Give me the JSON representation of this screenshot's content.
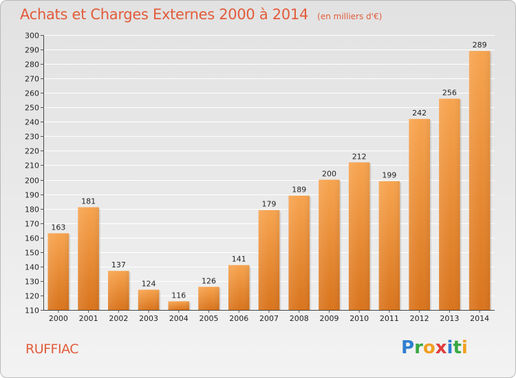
{
  "header": {
    "title": "Achats et Charges Externes 2000 à 2014",
    "subtitle": "(en milliers d'€)"
  },
  "footer": {
    "city": "RUFFIAC",
    "logo_text": "Proxiti",
    "logo_letters": [
      {
        "ch": "P",
        "color": "#2f7fd0"
      },
      {
        "ch": "r",
        "color": "#39a843"
      },
      {
        "ch": "o",
        "color": "#f0a020"
      },
      {
        "ch": "x",
        "color": "#e23b3b"
      },
      {
        "ch": "i",
        "color": "#2f7fd0"
      },
      {
        "ch": "t",
        "color": "#39a843"
      },
      {
        "ch": "i",
        "color": "#f0a020"
      }
    ]
  },
  "colors": {
    "accent": "#e25b3a",
    "bar_light": "#f7a44f",
    "bar_dark": "#d9741d"
  },
  "chart_data": {
    "type": "bar",
    "title": "Achats et Charges Externes 2000 à 2014",
    "subtitle": "(en milliers d'€)",
    "categories": [
      "2000",
      "2001",
      "2002",
      "2003",
      "2004",
      "2005",
      "2006",
      "2007",
      "2008",
      "2009",
      "2010",
      "2011",
      "2012",
      "2013",
      "2014"
    ],
    "values": [
      163,
      181,
      137,
      124,
      116,
      126,
      141,
      179,
      189,
      200,
      212,
      199,
      242,
      256,
      289
    ],
    "ylim": [
      110,
      300
    ],
    "yticks": [
      110,
      120,
      130,
      140,
      150,
      160,
      170,
      180,
      190,
      200,
      210,
      220,
      230,
      240,
      250,
      260,
      270,
      280,
      290,
      300
    ],
    "grid": "horizontal",
    "data_labels": true
  }
}
